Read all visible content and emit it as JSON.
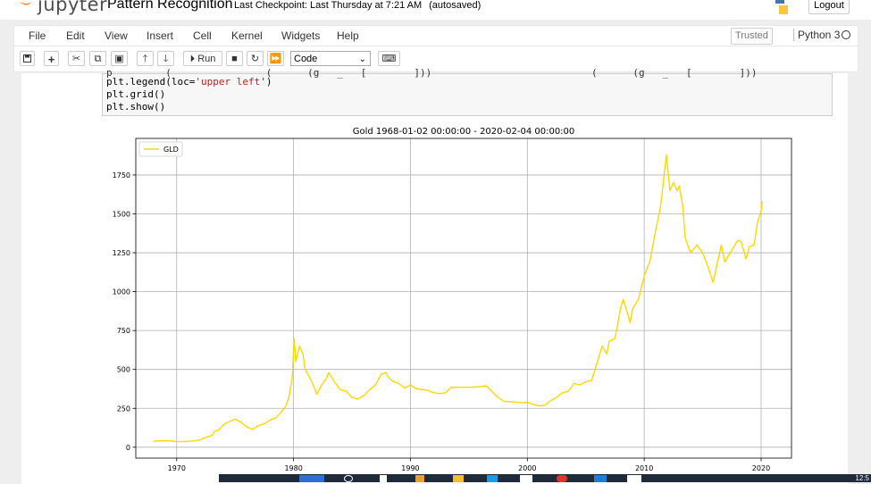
{
  "header": {
    "logo_text": "jupyter",
    "notebook_title": "Pattern Recognition",
    "checkpoint": "Last Checkpoint: Last Thursday at 7:21 AM",
    "autosave_status": "(autosaved)",
    "logout_label": "Logout"
  },
  "menubar": {
    "items": [
      "File",
      "Edit",
      "View",
      "Insert",
      "Cell",
      "Kernel",
      "Widgets",
      "Help"
    ],
    "trusted_label": "Trusted",
    "kernel_label": "Python 3"
  },
  "toolbar": {
    "run_label": "Run",
    "cell_type": "Code"
  },
  "code_cell": {
    "line_cut": "p         (                (      (g   _   [        ]))                           (      (g   _   [        ]))",
    "line1_pre": "plt.legend(loc=",
    "line1_str": "'upper left'",
    "line1_post": ")",
    "line2": "plt.grid()",
    "line3": "plt.show()"
  },
  "taskbar": {
    "clock": "12:5"
  },
  "chart_data": {
    "type": "line",
    "title": "Gold 1968-01-02 00:00:00 - 2020-02-04 00:00:00",
    "xlabel": "",
    "ylabel": "",
    "xlim": [
      1966.5,
      2022.6
    ],
    "ylim": [
      -70,
      1985
    ],
    "xticks": [
      1970,
      1980,
      1990,
      2000,
      2010,
      2020
    ],
    "yticks": [
      0,
      250,
      500,
      750,
      1000,
      1250,
      1500,
      1750
    ],
    "grid": true,
    "legend": "upper left",
    "series": [
      {
        "name": "GLD",
        "color": "#ffd700",
        "x": [
          1968.0,
          1968.5,
          1969.0,
          1969.5,
          1970.0,
          1970.5,
          1971.0,
          1971.5,
          1972.0,
          1972.5,
          1973.0,
          1973.3,
          1973.6,
          1974.0,
          1974.5,
          1975.0,
          1975.5,
          1976.0,
          1976.5,
          1977.0,
          1977.5,
          1978.0,
          1978.5,
          1979.0,
          1979.3,
          1979.6,
          1979.9,
          1980.05,
          1980.2,
          1980.5,
          1980.8,
          1981.0,
          1981.5,
          1982.0,
          1982.4,
          1982.8,
          1983.0,
          1983.5,
          1984.0,
          1984.5,
          1985.0,
          1985.5,
          1986.0,
          1986.5,
          1987.0,
          1987.5,
          1987.9,
          1988.2,
          1988.6,
          1989.0,
          1989.5,
          1990.0,
          1990.5,
          1991.0,
          1991.5,
          1992.0,
          1992.5,
          1993.0,
          1993.5,
          1994.0,
          1995.0,
          1996.0,
          1996.5,
          1997.0,
          1997.5,
          1998.0,
          1999.0,
          1999.7,
          2000.0,
          2000.5,
          2001.0,
          2001.5,
          2002.0,
          2002.5,
          2003.0,
          2003.5,
          2004.0,
          2004.5,
          2005.0,
          2005.5,
          2006.0,
          2006.4,
          2006.8,
          2007.0,
          2007.5,
          2008.0,
          2008.2,
          2008.5,
          2008.8,
          2009.0,
          2009.5,
          2010.0,
          2010.5,
          2011.0,
          2011.4,
          2011.7,
          2011.9,
          2012.2,
          2012.5,
          2012.8,
          2013.0,
          2013.3,
          2013.5,
          2013.8,
          2014.0,
          2014.5,
          2015.0,
          2015.5,
          2015.9,
          2016.3,
          2016.6,
          2016.9,
          2017.2,
          2017.6,
          2018.0,
          2018.3,
          2018.7,
          2019.0,
          2019.4,
          2019.7,
          2020.0,
          2020.1
        ],
        "y": [
          38,
          40,
          42,
          41,
          37,
          36,
          38,
          41,
          47,
          63,
          75,
          105,
          110,
          145,
          165,
          180,
          160,
          130,
          115,
          140,
          150,
          175,
          190,
          230,
          260,
          320,
          460,
          700,
          550,
          650,
          600,
          500,
          430,
          340,
          400,
          440,
          480,
          420,
          370,
          360,
          320,
          310,
          330,
          370,
          400,
          470,
          480,
          440,
          420,
          410,
          380,
          400,
          375,
          370,
          365,
          350,
          345,
          350,
          385,
          385,
          385,
          390,
          395,
          355,
          320,
          295,
          290,
          285,
          290,
          275,
          265,
          270,
          300,
          320,
          350,
          360,
          410,
          400,
          420,
          430,
          550,
          650,
          600,
          680,
          700,
          900,
          950,
          880,
          800,
          890,
          950,
          1100,
          1200,
          1400,
          1550,
          1750,
          1880,
          1650,
          1700,
          1650,
          1680,
          1550,
          1350,
          1280,
          1250,
          1300,
          1250,
          1150,
          1060,
          1200,
          1300,
          1190,
          1230,
          1280,
          1330,
          1320,
          1210,
          1290,
          1300,
          1450,
          1520,
          1580
        ]
      }
    ]
  }
}
